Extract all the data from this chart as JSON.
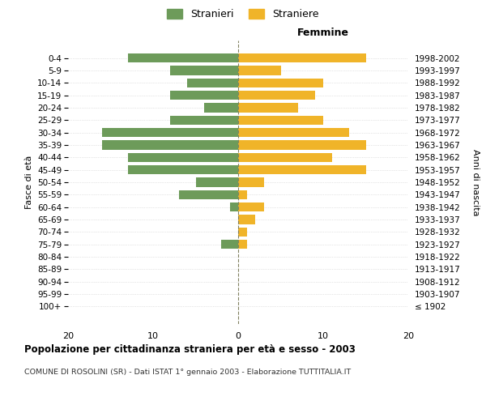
{
  "age_groups": [
    "100+",
    "95-99",
    "90-94",
    "85-89",
    "80-84",
    "75-79",
    "70-74",
    "65-69",
    "60-64",
    "55-59",
    "50-54",
    "45-49",
    "40-44",
    "35-39",
    "30-34",
    "25-29",
    "20-24",
    "15-19",
    "10-14",
    "5-9",
    "0-4"
  ],
  "birth_years": [
    "≤ 1902",
    "1903-1907",
    "1908-1912",
    "1913-1917",
    "1918-1922",
    "1923-1927",
    "1928-1932",
    "1933-1937",
    "1938-1942",
    "1943-1947",
    "1948-1952",
    "1953-1957",
    "1958-1962",
    "1963-1967",
    "1968-1972",
    "1973-1977",
    "1978-1982",
    "1983-1987",
    "1988-1992",
    "1993-1997",
    "1998-2002"
  ],
  "males": [
    0,
    0,
    0,
    0,
    0,
    2,
    0,
    0,
    1,
    7,
    5,
    13,
    13,
    16,
    16,
    8,
    4,
    8,
    6,
    8,
    13
  ],
  "females": [
    0,
    0,
    0,
    0,
    0,
    1,
    1,
    2,
    3,
    1,
    3,
    15,
    11,
    15,
    13,
    10,
    7,
    9,
    10,
    5,
    15
  ],
  "male_color": "#6d9b5a",
  "female_color": "#f0b429",
  "title": "Popolazione per cittadinanza straniera per età e sesso - 2003",
  "subtitle": "COMUNE DI ROSOLINI (SR) - Dati ISTAT 1° gennaio 2003 - Elaborazione TUTTITALIA.IT",
  "ylabel_left": "Fasce di età",
  "ylabel_right": "Anni di nascita",
  "xlabel_right": "Femmine",
  "legend_stranieri": "Stranieri",
  "legend_straniere": "Straniere",
  "xlim": 20,
  "background_color": "#ffffff",
  "grid_color": "#cccccc"
}
